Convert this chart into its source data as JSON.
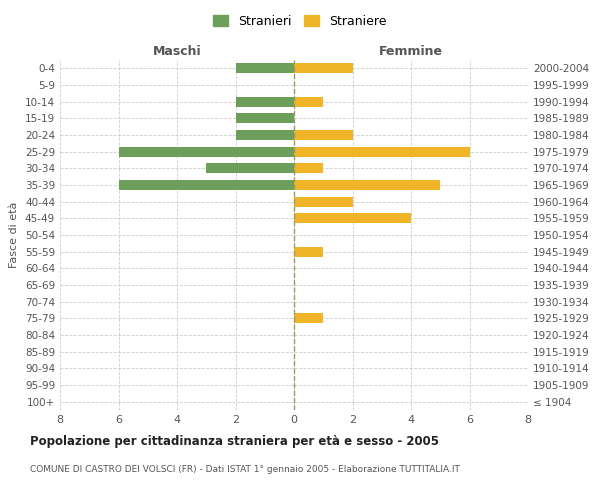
{
  "age_groups": [
    "100+",
    "95-99",
    "90-94",
    "85-89",
    "80-84",
    "75-79",
    "70-74",
    "65-69",
    "60-64",
    "55-59",
    "50-54",
    "45-49",
    "40-44",
    "35-39",
    "30-34",
    "25-29",
    "20-24",
    "15-19",
    "10-14",
    "5-9",
    "0-4"
  ],
  "birth_years": [
    "≤ 1904",
    "1905-1909",
    "1910-1914",
    "1915-1919",
    "1920-1924",
    "1925-1929",
    "1930-1934",
    "1935-1939",
    "1940-1944",
    "1945-1949",
    "1950-1954",
    "1955-1959",
    "1960-1964",
    "1965-1969",
    "1970-1974",
    "1975-1979",
    "1980-1984",
    "1985-1989",
    "1990-1994",
    "1995-1999",
    "2000-2004"
  ],
  "maschi": [
    0,
    0,
    0,
    0,
    0,
    0,
    0,
    0,
    0,
    0,
    0,
    0,
    0,
    6,
    3,
    6,
    2,
    2,
    2,
    0,
    2
  ],
  "femmine": [
    0,
    0,
    0,
    0,
    0,
    1,
    0,
    0,
    0,
    1,
    0,
    4,
    2,
    5,
    1,
    6,
    2,
    0,
    1,
    0,
    2
  ],
  "maschi_color": "#6d9e5a",
  "femmine_color": "#f0b429",
  "background_color": "#ffffff",
  "grid_color": "#cccccc",
  "title": "Popolazione per cittadinanza straniera per età e sesso - 2005",
  "subtitle": "COMUNE DI CASTRO DEI VOLSCI (FR) - Dati ISTAT 1° gennaio 2005 - Elaborazione TUTTITALIA.IT",
  "xlabel_left": "Maschi",
  "xlabel_right": "Femmine",
  "ylabel_left": "Fasce di età",
  "legend_maschi": "Stranieri",
  "legend_femmine": "Straniere",
  "xlim": 8,
  "figsize": [
    6.0,
    5.0
  ],
  "dpi": 100
}
